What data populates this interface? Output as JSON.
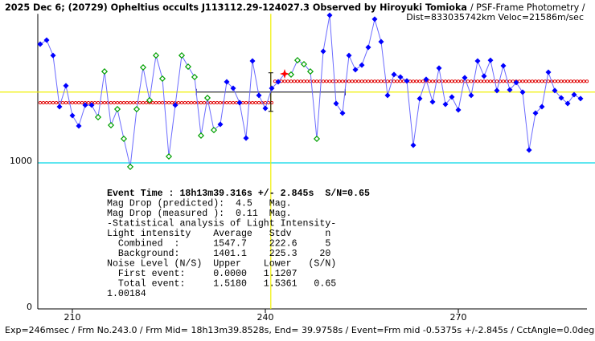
{
  "chart_data": {
    "type": "lightcurve",
    "title": "2025 Dec 6; (20729) Opheltius occults J113112.29-124027.3 Observed by Hiroyuki Tomioka",
    "title_suffix": "/ PSF-Frame Photometry /",
    "subtitle": "Dist=833035742km Veloc=21586m/sec",
    "footer": "Exp=246msec / Frm No.243.0 / Frm Mid= 18h13m39.8528s, End= 39.9758s / Event=Frm mid -0.5375s +/-2.845s / CctAngle=0.0deg",
    "x": [
      205,
      206,
      207,
      208,
      209,
      210,
      211,
      212,
      213,
      214,
      215,
      216,
      217,
      218,
      219,
      220,
      221,
      222,
      223,
      224,
      225,
      226,
      227,
      228,
      229,
      230,
      231,
      232,
      233,
      234,
      235,
      236,
      237,
      238,
      239,
      240,
      241,
      242,
      243,
      244,
      245,
      246,
      247,
      248,
      249,
      250,
      251,
      252,
      253,
      254,
      255,
      256,
      257,
      258,
      259,
      260,
      261,
      262,
      263,
      264,
      265,
      266,
      267,
      268,
      269,
      270,
      271,
      272,
      273,
      274,
      275,
      276,
      277,
      278,
      279,
      280,
      281,
      282,
      283,
      284,
      285,
      286,
      287,
      288,
      289
    ],
    "values": [
      1802,
      1830,
      1725,
      1374,
      1517,
      1313,
      1242,
      1385,
      1385,
      1302,
      1615,
      1247,
      1357,
      1154,
      962,
      1357,
      1643,
      1418,
      1725,
      1566,
      1033,
      1385,
      1725,
      1648,
      1577,
      1176,
      1434,
      1214,
      1253,
      1544,
      1500,
      1401,
      1159,
      1687,
      1451,
      1363,
      1500,
      1544,
      1599,
      1594,
      1692,
      1665,
      1615,
      1154,
      1753,
      2000,
      1396,
      1330,
      1725,
      1627,
      1659,
      1780,
      1973,
      1819,
      1451,
      1594,
      1577,
      1550,
      1110,
      1429,
      1561,
      1407,
      1638,
      1390,
      1440,
      1352,
      1572,
      1451,
      1687,
      1583,
      1692,
      1484,
      1654,
      1489,
      1539,
      1473,
      1077,
      1330,
      1374,
      1610,
      1484,
      1434,
      1396,
      1456,
      1429
    ],
    "colors": [
      "#0000ff",
      "#0000ff",
      "#0000ff",
      "#0000ff",
      "#0000ff",
      "#0000ff",
      "#0000ff",
      "#0000ff",
      "#0000ff",
      "#00a000",
      "#00a000",
      "#00a000",
      "#00a000",
      "#00a000",
      "#00a000",
      "#00a000",
      "#00a000",
      "#00a000",
      "#00a000",
      "#00a000",
      "#00a000",
      "#0000ff",
      "#00a000",
      "#00a000",
      "#00a000",
      "#00a000",
      "#00a000",
      "#00a000",
      "#0000ff",
      "#0000ff",
      "#0000ff",
      "#0000ff",
      "#0000ff",
      "#0000ff",
      "#0000ff",
      "#0000ff",
      "#0000ff",
      "#0000ff",
      "#ff0000",
      "#00a000",
      "#00a000",
      "#00a000",
      "#00a000",
      "#00a000",
      "#0000ff",
      "#0000ff",
      "#0000ff",
      "#0000ff",
      "#0000ff",
      "#0000ff",
      "#0000ff",
      "#0000ff",
      "#0000ff",
      "#0000ff",
      "#0000ff",
      "#0000ff",
      "#0000ff",
      "#0000ff",
      "#0000ff",
      "#0000ff",
      "#0000ff",
      "#0000ff",
      "#0000ff",
      "#0000ff",
      "#0000ff",
      "#0000ff",
      "#0000ff",
      "#0000ff",
      "#0000ff",
      "#0000ff",
      "#0000ff",
      "#0000ff",
      "#0000ff",
      "#0000ff",
      "#0000ff",
      "#0000ff",
      "#0000ff",
      "#0000ff",
      "#0000ff",
      "#0000ff",
      "#0000ff",
      "#0000ff",
      "#0000ff",
      "#0000ff",
      "#0000ff"
    ],
    "line_color": "#6b6bff",
    "xlim": [
      204.625,
      290
    ],
    "xticks": [
      210,
      240,
      270
    ],
    "ylim": [
      0,
      2010
    ],
    "yticks": [
      0,
      1000
    ],
    "grid_color": "#00d8e8",
    "baseline_level": 1401.1,
    "event_level": 1547.7,
    "event_start": 241,
    "level_color": "#e00000",
    "event_frame": 240.85,
    "event_frame_error": 11.57,
    "mean_level": 1474,
    "mean_level_error": 132,
    "stats_lines": [
      "Event Time : 18h13m39.316s +/- 2.845s  S/N=0.65",
      "Mag Drop (predicted):  4.5   Mag.",
      "Mag Drop (measured ):  0.11  Mag.",
      "-Statistical analysis of Light Intensity-",
      "Light intensity    Average   Stdv      n",
      "  Combined  :      1547.7    222.6     5",
      "  Background:      1401.1    225.3    20",
      "Noise Level (N/S)  Upper    Lower   (S/N)",
      "  First event:     0.0000   1.1207",
      "  Total event:     1.5180   1.5361   0.65",
      "1.00184"
    ]
  }
}
